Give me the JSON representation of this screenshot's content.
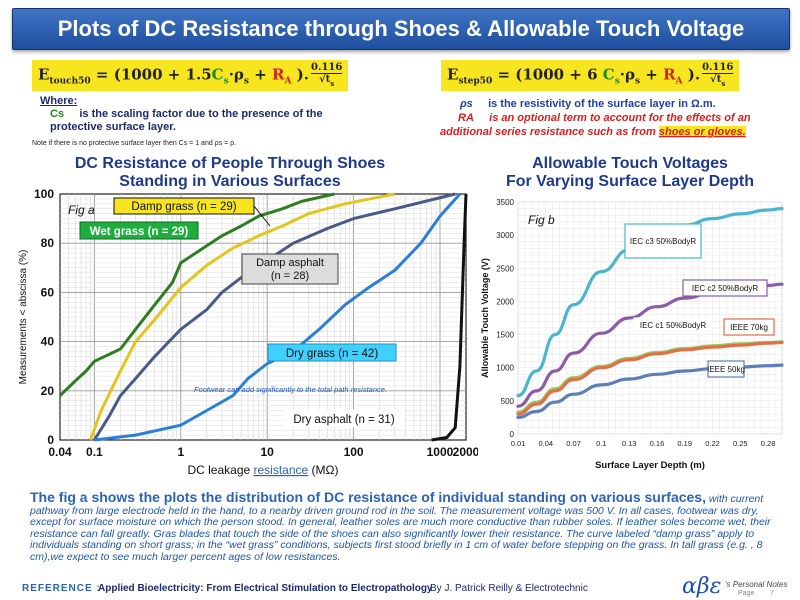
{
  "title": "Plots of DC Resistance through Shoes & Allowable Touch Voltage",
  "formula_touch": {
    "lhs": "E",
    "lhs_sub": "touch50",
    "body_a": " = (1000 + 1.5",
    "cs": "C",
    "cs_sub": "s",
    "body_b": "·ρ",
    "rho_sub": "s",
    "plus": " + ",
    "ra": "R",
    "ra_sub": "A",
    "close": " ).",
    "num": "0.116",
    "den": "√t",
    "den_sub": "s"
  },
  "formula_step": {
    "lhs": "E",
    "lhs_sub": "step50",
    "body_a": " = (1000 + 6 ",
    "cs": "C",
    "cs_sub": "s",
    "body_b": "·ρ",
    "rho_sub": "s",
    "plus": " + ",
    "ra": "R",
    "ra_sub": "A",
    "close": " ).",
    "num": "0.116",
    "den": "√t",
    "den_sub": "s"
  },
  "where_label": "Where:",
  "cs_symbol": "Cs",
  "cs_desc": "is the scaling factor due to the presence of the protective surface layer.",
  "small_note": "Note if there is no protective surface layer then Cs = 1 and ρs = ρ.",
  "rho_symbol": "ρs",
  "rho_desc": "is the resistivity of the surface layer in Ω.m.",
  "ra_symbol": "RA",
  "ra_desc": "is an optional term to account for the effects of an additional series resistance such as from",
  "ra_highlight": "shoes or gloves.",
  "left_heading": [
    "DC Resistance of People Through Shoes",
    "Standing in Various Surfaces"
  ],
  "right_heading": [
    "Allowable Touch Voltages",
    "For Varying Surface Layer Depth"
  ],
  "chart_data": [
    {
      "type": "line",
      "fig_label": "Fig a",
      "title": "DC Resistance of People Through Shoes Standing in Various Surfaces",
      "xlabel": "DC leakage resistance (MΩ)",
      "xlabel_main": "DC leakage ",
      "xlabel_link": "resistance",
      "xlabel_unit": " (MΩ)",
      "ylabel": "Measurements < abscissa (%)",
      "xscale": "log",
      "xlim": [
        0.04,
        2000
      ],
      "ylim": [
        0,
        100
      ],
      "xticks": [
        0.04,
        0.1,
        1,
        10,
        100,
        1000,
        2000
      ],
      "xtick_labels": [
        "0.04",
        "0.1",
        "1",
        "10",
        "100",
        "1000",
        "2000"
      ],
      "yticks": [
        0,
        20,
        40,
        60,
        80,
        100
      ],
      "ytick_labels": [
        "0",
        "20",
        "40",
        "60",
        "80",
        "100"
      ],
      "annotation": "Footwear can add significantly to the total path resistance.",
      "series": [
        {
          "name": "Wet grass (n = 29)",
          "color": "#2e7d1f",
          "x": [
            0.04,
            0.06,
            0.08,
            0.1,
            0.2,
            0.3,
            0.5,
            0.8,
            1,
            2,
            3,
            5,
            8,
            15,
            25,
            60
          ],
          "y": [
            18,
            24,
            28,
            32,
            37,
            45,
            55,
            64,
            72,
            79,
            83,
            87,
            91,
            94,
            97,
            100
          ]
        },
        {
          "name": "Damp grass (n = 29)",
          "color": "#e3c51e",
          "x": [
            0.09,
            0.12,
            0.2,
            0.3,
            0.5,
            1,
            2,
            4,
            8,
            15,
            30,
            80,
            300
          ],
          "y": [
            0,
            12,
            28,
            40,
            49,
            62,
            71,
            78,
            83,
            87,
            92,
            96,
            100
          ]
        },
        {
          "name": "Damp asphalt (n = 28)",
          "color": "#4a5a86",
          "x": [
            0.1,
            0.15,
            0.2,
            0.3,
            0.5,
            1,
            2,
            3,
            5,
            10,
            20,
            50,
            100,
            300,
            1500
          ],
          "y": [
            0,
            10,
            18,
            25,
            34,
            45,
            53,
            60,
            66,
            73,
            80,
            86,
            90,
            94,
            100
          ]
        },
        {
          "name": "Dry grass (n = 42)",
          "color": "#2a7fd6",
          "x": [
            0.1,
            0.3,
            1,
            2,
            4,
            6,
            10,
            20,
            40,
            80,
            150,
            300,
            600,
            1000,
            1700
          ],
          "y": [
            0,
            2,
            6,
            12,
            18,
            25,
            31,
            36,
            45,
            55,
            62,
            69,
            80,
            91,
            100
          ]
        },
        {
          "name": "Dry asphalt (n = 31)",
          "color": "#111111",
          "x": [
            800,
            1200,
            1500,
            1700,
            1900,
            2000
          ],
          "y": [
            0,
            1,
            5,
            30,
            80,
            100
          ]
        }
      ]
    },
    {
      "type": "line",
      "fig_label": "Fig b",
      "title": "Allowable Touch Voltages For Varying Surface Layer Depth",
      "xlabel": "Surface Layer Depth (m)",
      "ylabel": "Allowable Touch Voltage (V)",
      "xlim": [
        0.01,
        0.295
      ],
      "ylim": [
        0,
        3500
      ],
      "xticks": [
        0.01,
        0.04,
        0.07,
        0.1,
        0.13,
        0.16,
        0.19,
        0.22,
        0.25,
        0.28
      ],
      "xtick_labels": [
        "0.01",
        "0.04",
        "0.07",
        "0.1",
        "0.13",
        "0.16",
        "0.19",
        "0.22",
        "0.25",
        "0.28"
      ],
      "yticks": [
        0,
        500,
        1000,
        1500,
        2000,
        2500,
        3000,
        3500
      ],
      "ytick_labels": [
        "0",
        "500",
        "1000",
        "1500",
        "2000",
        "2500",
        "3000",
        "3500"
      ],
      "series": [
        {
          "name": "IEC c3 50%BodyR",
          "color": "#4ab5cf",
          "x": [
            0.01,
            0.03,
            0.05,
            0.07,
            0.1,
            0.13,
            0.16,
            0.19,
            0.22,
            0.25,
            0.28,
            0.295
          ],
          "y": [
            580,
            950,
            1500,
            1950,
            2450,
            2780,
            3000,
            3150,
            3250,
            3320,
            3380,
            3400
          ]
        },
        {
          "name": "IEC c2 50%BodyR",
          "color": "#8b5aa8",
          "x": [
            0.01,
            0.03,
            0.05,
            0.07,
            0.1,
            0.13,
            0.16,
            0.19,
            0.22,
            0.25,
            0.28,
            0.295
          ],
          "y": [
            420,
            650,
            950,
            1220,
            1520,
            1750,
            1920,
            2050,
            2130,
            2190,
            2240,
            2260
          ]
        },
        {
          "name": "IEC c1 50%BodyR",
          "color": "#9fc45a",
          "x": [
            0.01,
            0.03,
            0.05,
            0.07,
            0.1,
            0.13,
            0.16,
            0.19,
            0.22,
            0.25,
            0.28,
            0.295
          ],
          "y": [
            330,
            480,
            680,
            850,
            1020,
            1140,
            1230,
            1290,
            1330,
            1360,
            1380,
            1390
          ]
        },
        {
          "name": "IEEE 70kg",
          "color": "#e0704a",
          "x": [
            0.01,
            0.03,
            0.05,
            0.07,
            0.1,
            0.13,
            0.16,
            0.19,
            0.22,
            0.25,
            0.28,
            0.295
          ],
          "y": [
            300,
            450,
            650,
            820,
            1000,
            1120,
            1210,
            1270,
            1310,
            1340,
            1370,
            1380
          ]
        },
        {
          "name": "IEEE 50kg",
          "color": "#5c7fb8",
          "x": [
            0.01,
            0.03,
            0.05,
            0.07,
            0.1,
            0.13,
            0.16,
            0.19,
            0.22,
            0.25,
            0.28,
            0.295
          ],
          "y": [
            250,
            340,
            480,
            600,
            740,
            830,
            900,
            950,
            985,
            1010,
            1030,
            1040
          ]
        }
      ]
    }
  ],
  "paragraph_lead": "The fig a shows the plots the distribution of DC resistance of individual standing on various surfaces,",
  "paragraph_body": "with current pathway from large electrode held in the hand, to a nearby driven ground rod in the soil. The measurement voltage was 500 V. In all cases, footwear was dry, except for surface moisture on which the person stood. In general, leather soles are much more conductive than rubber soles. If leather soles become wet, their resistance can fall greatly. Gras blades that touch the side of the shoes can also significantly lower their resistance. The curve labeled “damp grass” apply to individuals standing on short grass; in the “wet grass” conditions, subjects first stood briefly in 1 cm of water before stepping on the grass. In tall grass (e.g. , 8 cm),we expect to see much larger percent ages of low resistances.",
  "reference_label": "REFERENCE :",
  "reference_text": "Applied Bioelectricity: From Electrical Stimulation to Electropathology",
  "reference_by": "By J. Patrick Reilly & Electrotechnic",
  "logo_text": "αβε",
  "logo_caption": "'s Personal Notes",
  "page_label": "Page",
  "page_number": "7",
  "colors": {
    "title_bg": "#2a5bb0",
    "formula_bg": "#f7e51f",
    "heading": "#1f3a8a",
    "body_text": "#1e57a8"
  }
}
